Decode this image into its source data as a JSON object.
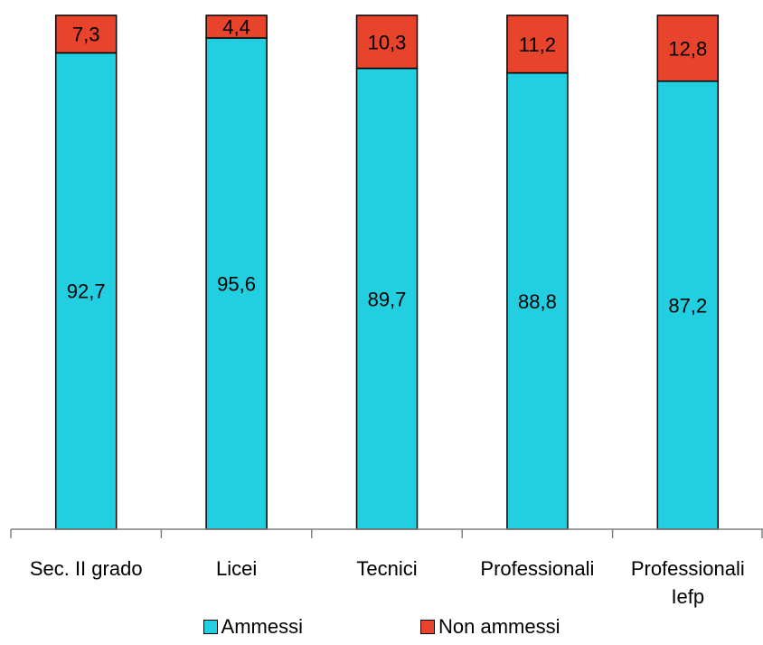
{
  "chart_data": {
    "type": "bar",
    "stacked": true,
    "categories": [
      "Sec. II grado",
      "Licei",
      "Tecnici",
      "Professionali",
      "Professionali Iefp"
    ],
    "category_lines": [
      [
        "Sec. II grado"
      ],
      [
        "Licei"
      ],
      [
        "Tecnici"
      ],
      [
        "Professionali"
      ],
      [
        "Professionali",
        "Iefp"
      ]
    ],
    "series": [
      {
        "name": "Ammessi",
        "color": "#22cfe0",
        "values": [
          92.7,
          95.6,
          89.7,
          88.8,
          87.2
        ],
        "labels": [
          "92,7",
          "95,6",
          "89,7",
          "88,8",
          "87,2"
        ]
      },
      {
        "name": "Non ammessi",
        "color": "#e8432b",
        "values": [
          7.3,
          4.4,
          10.3,
          11.2,
          12.8
        ],
        "labels": [
          "7,3",
          "4,4",
          "10,3",
          "11,2",
          "12,8"
        ]
      }
    ],
    "ylim": [
      0,
      100
    ],
    "grid": false,
    "legend_position": "bottom"
  }
}
